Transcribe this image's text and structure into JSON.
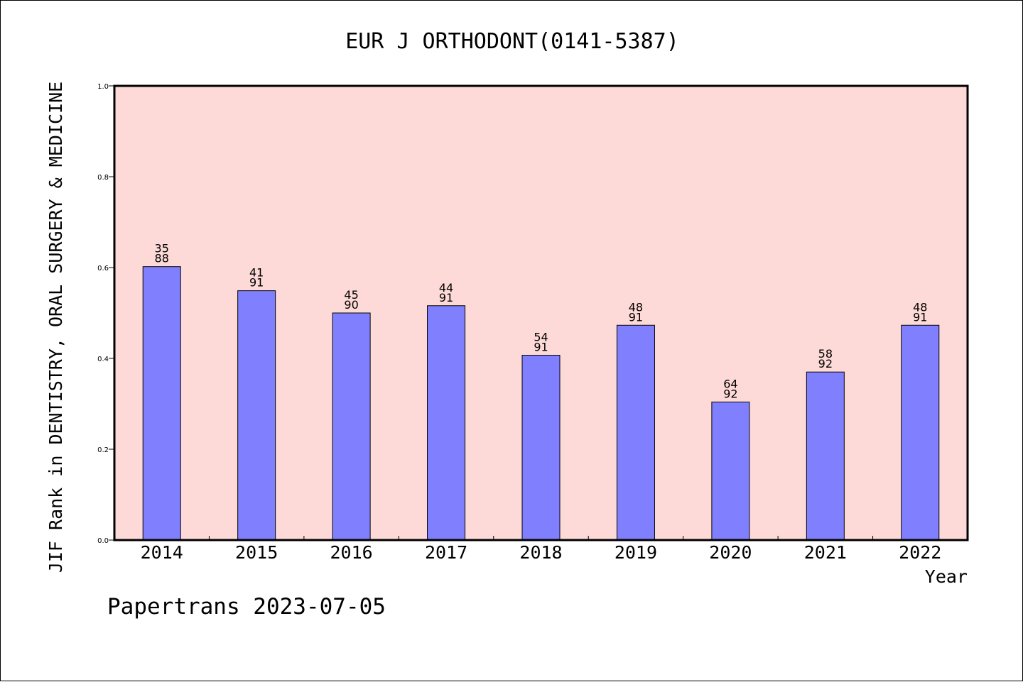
{
  "chart_data": {
    "type": "bar",
    "title": "EUR J ORTHODONT(0141-5387)",
    "ylabel": "JIF Rank in DENTISTRY, ORAL SURGERY & MEDICINE",
    "xlabel": "Year",
    "ylim": [
      0.0,
      1.0
    ],
    "yticks": [
      "0.0",
      "0.2",
      "0.4",
      "0.6",
      "0.8",
      "1.0"
    ],
    "categories": [
      "2014",
      "2015",
      "2016",
      "2017",
      "2018",
      "2019",
      "2020",
      "2021",
      "2022"
    ],
    "values": [
      0.602,
      0.549,
      0.5,
      0.516,
      0.407,
      0.473,
      0.304,
      0.37,
      0.473
    ],
    "ranks": [
      "35",
      "41",
      "45",
      "44",
      "54",
      "48",
      "64",
      "58",
      "48"
    ],
    "totals": [
      "88",
      "91",
      "90",
      "91",
      "91",
      "91",
      "92",
      "92",
      "91"
    ],
    "grid": false,
    "colors": {
      "plot_background": "#fddad7",
      "bar_fill": "#8080ff",
      "bar_stroke": "#000000"
    }
  },
  "footer": "Papertrans 2023-07-05"
}
